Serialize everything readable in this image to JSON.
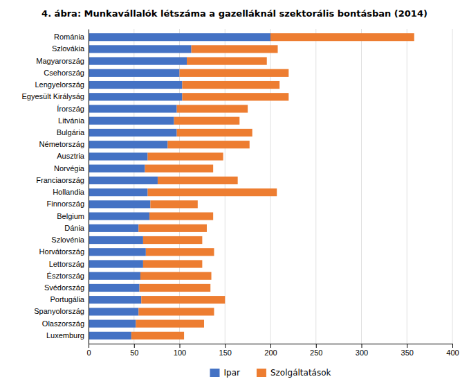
{
  "chart_data": {
    "type": "bar",
    "orientation": "horizontal",
    "stacked": true,
    "title": "4. ábra: Munkavállalók létszáma a gazelláknál szektorális bontásban (2014)",
    "categories": [
      "Románia",
      "Szlovákia",
      "Magyarország",
      "Csehország",
      "Lengyelország",
      "Egyesült Királyság",
      "Írország",
      "Litvánia",
      "Bulgária",
      "Németország",
      "Ausztria",
      "Norvégia",
      "Franciaország",
      "Hollandia",
      "Finnország",
      "Belgium",
      "Dánia",
      "Szlovénia",
      "Horvátország",
      "Lettország",
      "Észtország",
      "Svédország",
      "Portugália",
      "Spanyolország",
      "Olaszország",
      "Luxemburg"
    ],
    "series": [
      {
        "name": "Ipar",
        "color": "#4472C4",
        "values": [
          200,
          113,
          108,
          100,
          103,
          103,
          97,
          94,
          97,
          87,
          65,
          62,
          76,
          65,
          68,
          67,
          55,
          60,
          63,
          60,
          57,
          56,
          58,
          55,
          52,
          47
        ]
      },
      {
        "name": "Szolgáltatások",
        "color": "#ED7D31",
        "values": [
          158,
          95,
          88,
          120,
          107,
          117,
          78,
          72,
          83,
          90,
          83,
          75,
          88,
          142,
          52,
          70,
          75,
          65,
          75,
          65,
          78,
          78,
          92,
          83,
          75,
          58
        ]
      }
    ],
    "xlim": [
      0,
      400
    ],
    "xticks": [
      0,
      50,
      100,
      150,
      200,
      250,
      300,
      350,
      400
    ],
    "grid": true,
    "legend": "bottom"
  }
}
